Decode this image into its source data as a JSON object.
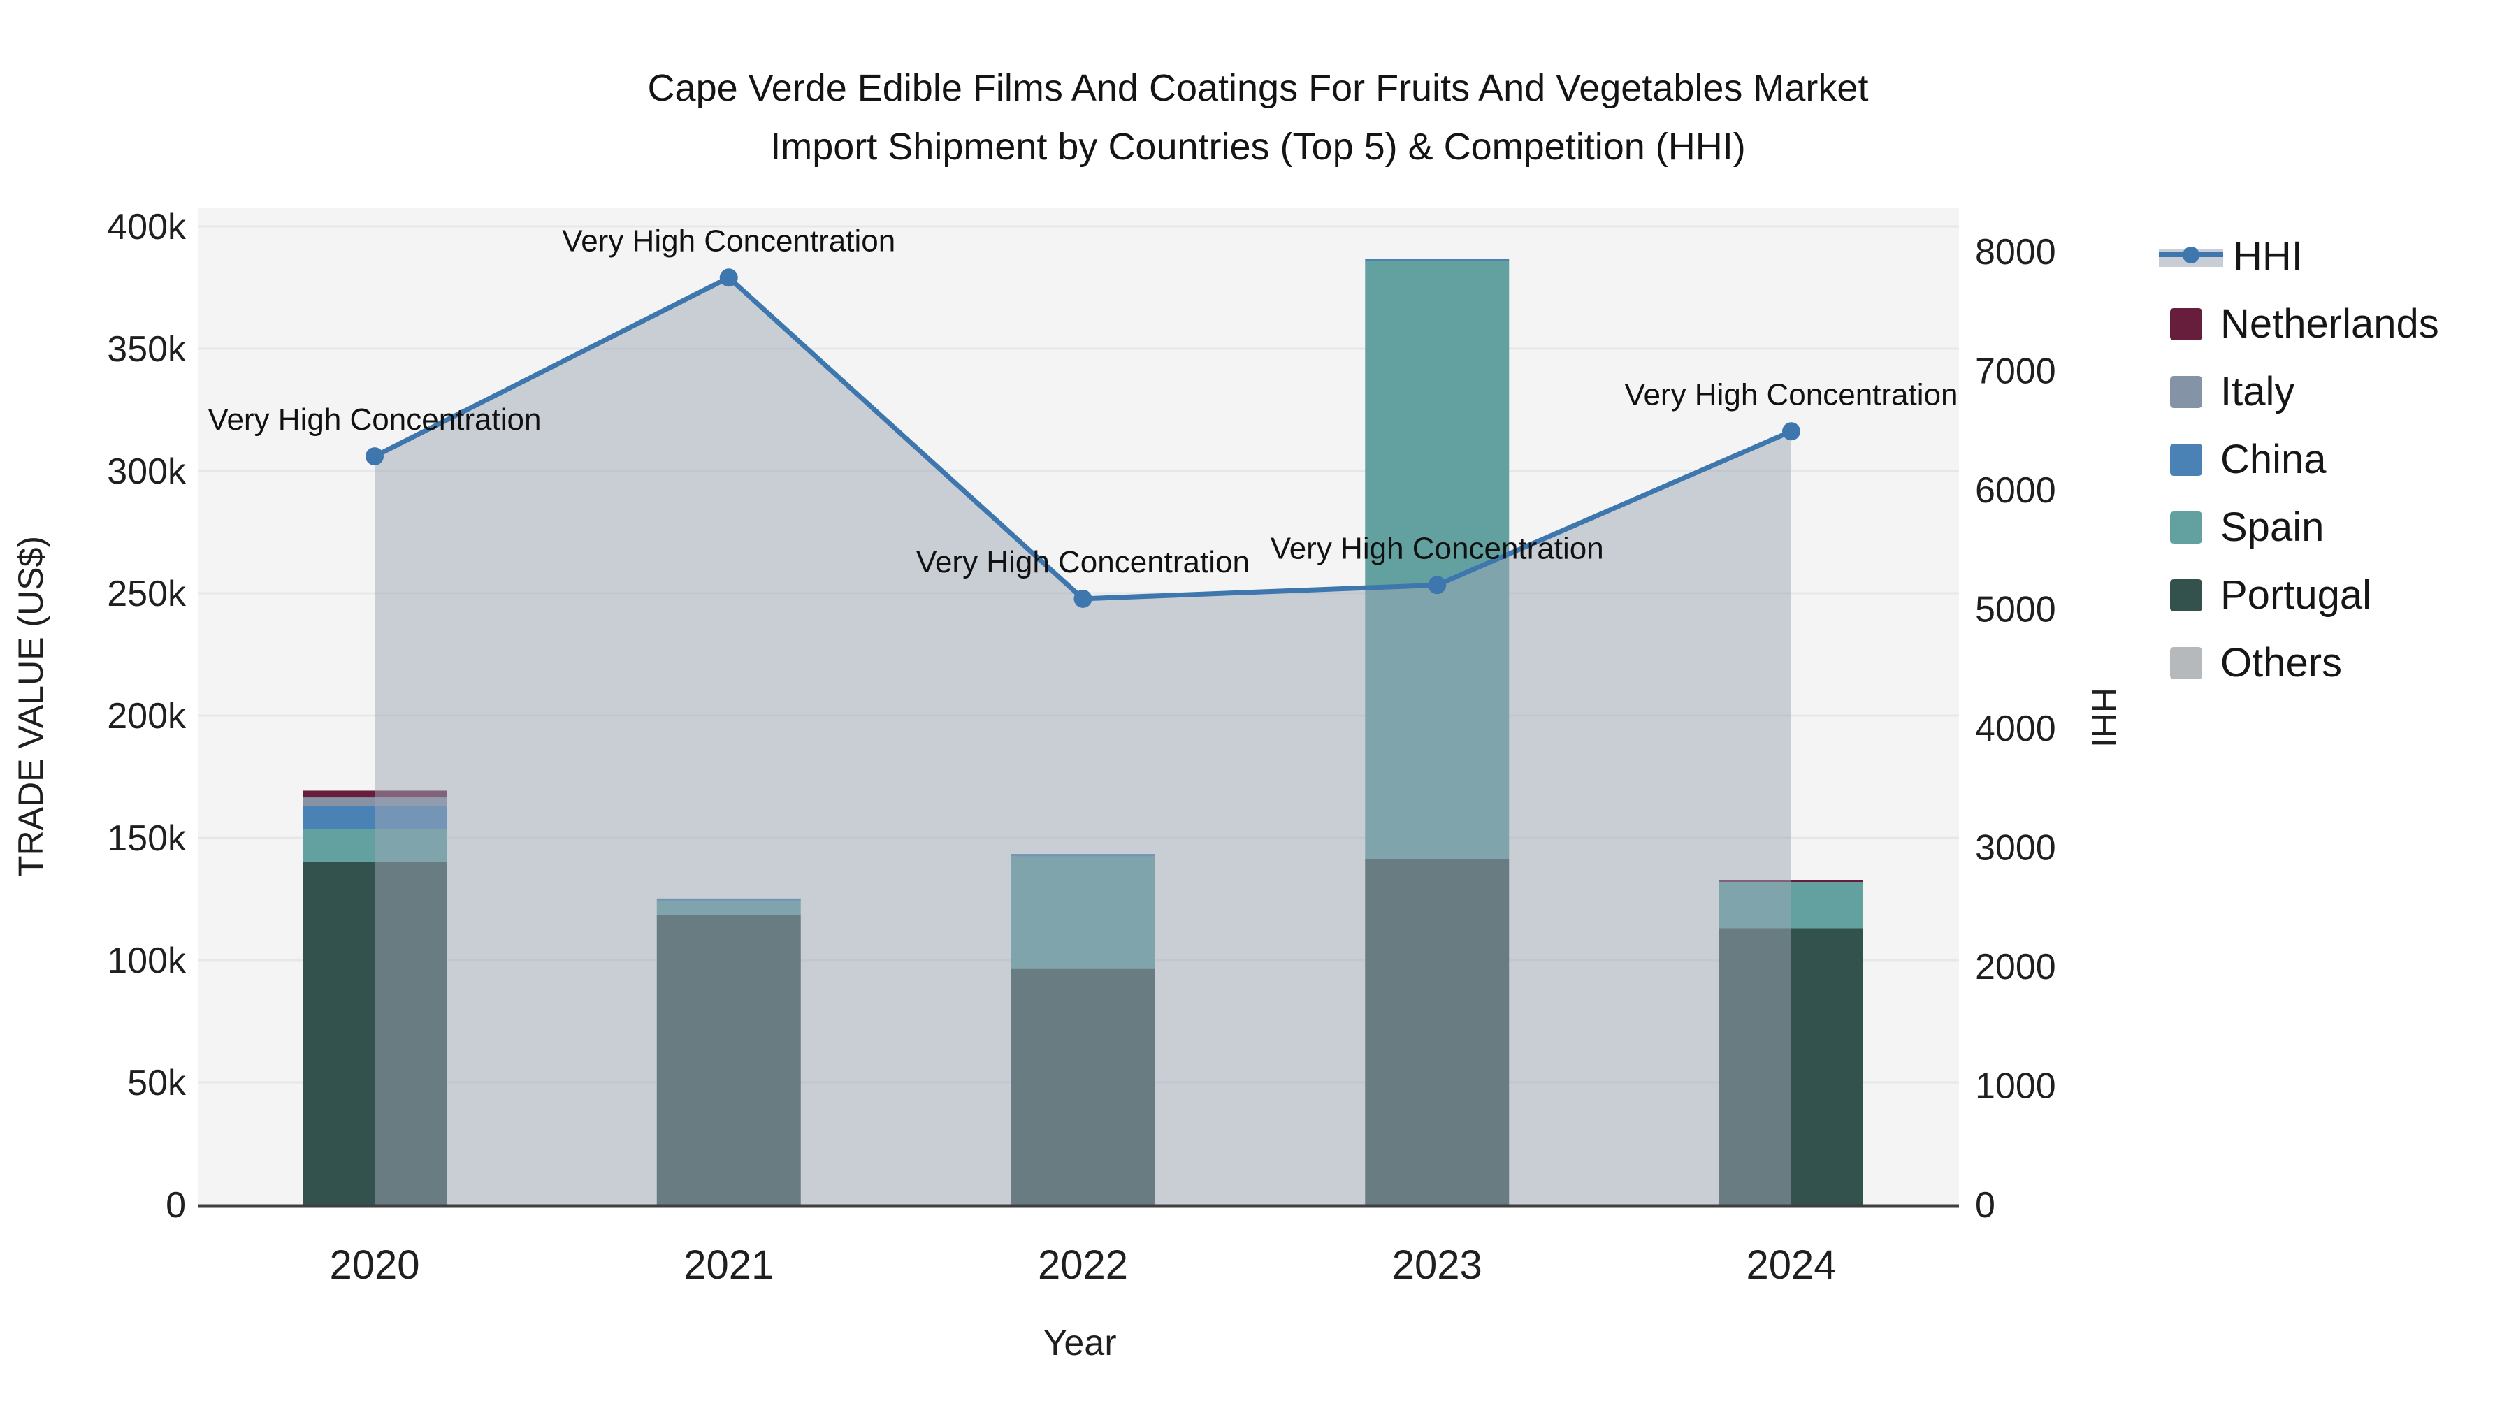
{
  "title": {
    "line1": "Cape Verde Edible Films And Coatings For Fruits And Vegetables Market",
    "line2": "Import Shipment by Countries (Top 5) & Competition (HHI)"
  },
  "axes": {
    "x": {
      "title": "Year",
      "tick_labels": [
        "2020",
        "2021",
        "2022",
        "2023",
        "2024"
      ]
    },
    "y_left": {
      "title": "TRADE VALUE (US$)",
      "tick_labels": [
        "0",
        "50k",
        "100k",
        "150k",
        "200k",
        "250k",
        "300k",
        "350k",
        "400k"
      ]
    },
    "y_right": {
      "title": "HHI",
      "tick_labels": [
        "0",
        "1000",
        "2000",
        "3000",
        "4000",
        "5000",
        "6000",
        "7000",
        "8000"
      ]
    }
  },
  "legend": {
    "items": [
      {
        "label": "HHI",
        "type": "line",
        "color_key": "hhi_line"
      },
      {
        "label": "Netherlands",
        "type": "square",
        "color_key": "netherlands"
      },
      {
        "label": "Italy",
        "type": "square",
        "color_key": "italy"
      },
      {
        "label": "China",
        "type": "square",
        "color_key": "china"
      },
      {
        "label": "Spain",
        "type": "square",
        "color_key": "spain"
      },
      {
        "label": "Portugal",
        "type": "square",
        "color_key": "portugal"
      },
      {
        "label": "Others",
        "type": "square",
        "color_key": "others"
      }
    ]
  },
  "colors": {
    "hhi_line": "#3d77ad",
    "hhi_area_fill": "rgba(158,168,182,0.5)",
    "legend_band": "#c9cdd5",
    "netherlands": "#671d3c",
    "italy": "#8593a6",
    "china": "#4a82b5",
    "spain": "#63a1a1",
    "portugal": "#33514d",
    "others": "#b6b9bc",
    "plot_bg": "#f4f4f5",
    "grid": "#e6e7e9",
    "axis_line": "#3f3f3f",
    "tick_text": "#1f1f1f",
    "annotation_text": "#111111"
  },
  "chart_data": {
    "type": "combo: stacked bar + line",
    "categories": [
      "2020",
      "2021",
      "2022",
      "2023",
      "2024"
    ],
    "bar_unit": "US$",
    "bar_series": [
      {
        "name": "Netherlands",
        "color_key": "netherlands",
        "values": [
          2800,
          0,
          0,
          0,
          600
        ]
      },
      {
        "name": "Italy",
        "color_key": "italy",
        "values": [
          3400,
          0,
          0,
          0,
          0
        ]
      },
      {
        "name": "China",
        "color_key": "china",
        "values": [
          9600,
          1000,
          1000,
          1000,
          0
        ]
      },
      {
        "name": "Spain",
        "color_key": "spain",
        "values": [
          13500,
          5700,
          46000,
          244500,
          19000
        ]
      },
      {
        "name": "Portugal",
        "color_key": "portugal",
        "values": [
          140000,
          118500,
          96400,
          141300,
          113000
        ]
      },
      {
        "name": "Others",
        "color_key": "others",
        "values": [
          0,
          0,
          0,
          0,
          0
        ]
      }
    ],
    "stack_order_bottom_to_top": [
      "Portugal",
      "Spain",
      "China",
      "Italy",
      "Netherlands",
      "Others"
    ],
    "line_series": {
      "name": "HHI",
      "axis": "right",
      "values": [
        6280,
        7780,
        5085,
        5200,
        6490
      ],
      "area_fill": true,
      "annotations": [
        "Very High Concentration",
        "Very High Concentration",
        "Very High Concentration",
        "Very High Concentration",
        "Very High Concentration"
      ]
    },
    "y_left_range": [
      0,
      400000
    ],
    "y_left_gridline_step": 50000,
    "y_right_range": [
      0,
      8210
    ],
    "y_right_tick_step": 1000,
    "grid": "on",
    "legend_position": "right"
  }
}
